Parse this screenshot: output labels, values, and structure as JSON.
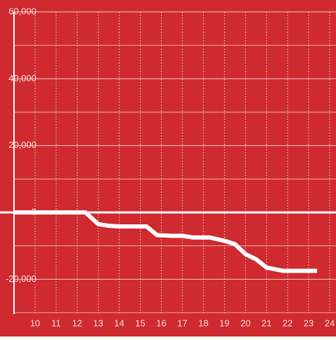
{
  "chart_data": {
    "type": "line",
    "x": [
      9,
      12.4,
      13,
      13.5,
      14,
      15.3,
      15.8,
      16.5,
      17,
      17.5,
      18.3,
      19,
      19.5,
      20,
      20.5,
      21,
      21.8,
      23.4
    ],
    "series": [
      {
        "color": "#ffffff",
        "values": [
          0,
          0,
          -3500,
          -4000,
          -4200,
          -4200,
          -6800,
          -7000,
          -7000,
          -7500,
          -7500,
          -8500,
          -9500,
          -12500,
          -14000,
          -16500,
          -17500,
          -17500
        ]
      }
    ],
    "xlim": [
      9,
      24.3
    ],
    "xticks": [
      10,
      11,
      12,
      13,
      14,
      15,
      16,
      17,
      18,
      19,
      20,
      21,
      22,
      23,
      24
    ],
    "ylim": [
      -30000,
      60000
    ],
    "yticks": [
      {
        "value": -20000,
        "label": "-20,000"
      },
      0,
      {
        "value": 20000,
        "label": "20,000"
      },
      {
        "value": 40000,
        "label": "40,000"
      },
      {
        "value": 60000,
        "label": "60,000"
      }
    ],
    "ygrid_minor": [
      -30000,
      -10000,
      10000,
      30000,
      50000
    ],
    "grid": true,
    "background": "#cf2a2f"
  }
}
